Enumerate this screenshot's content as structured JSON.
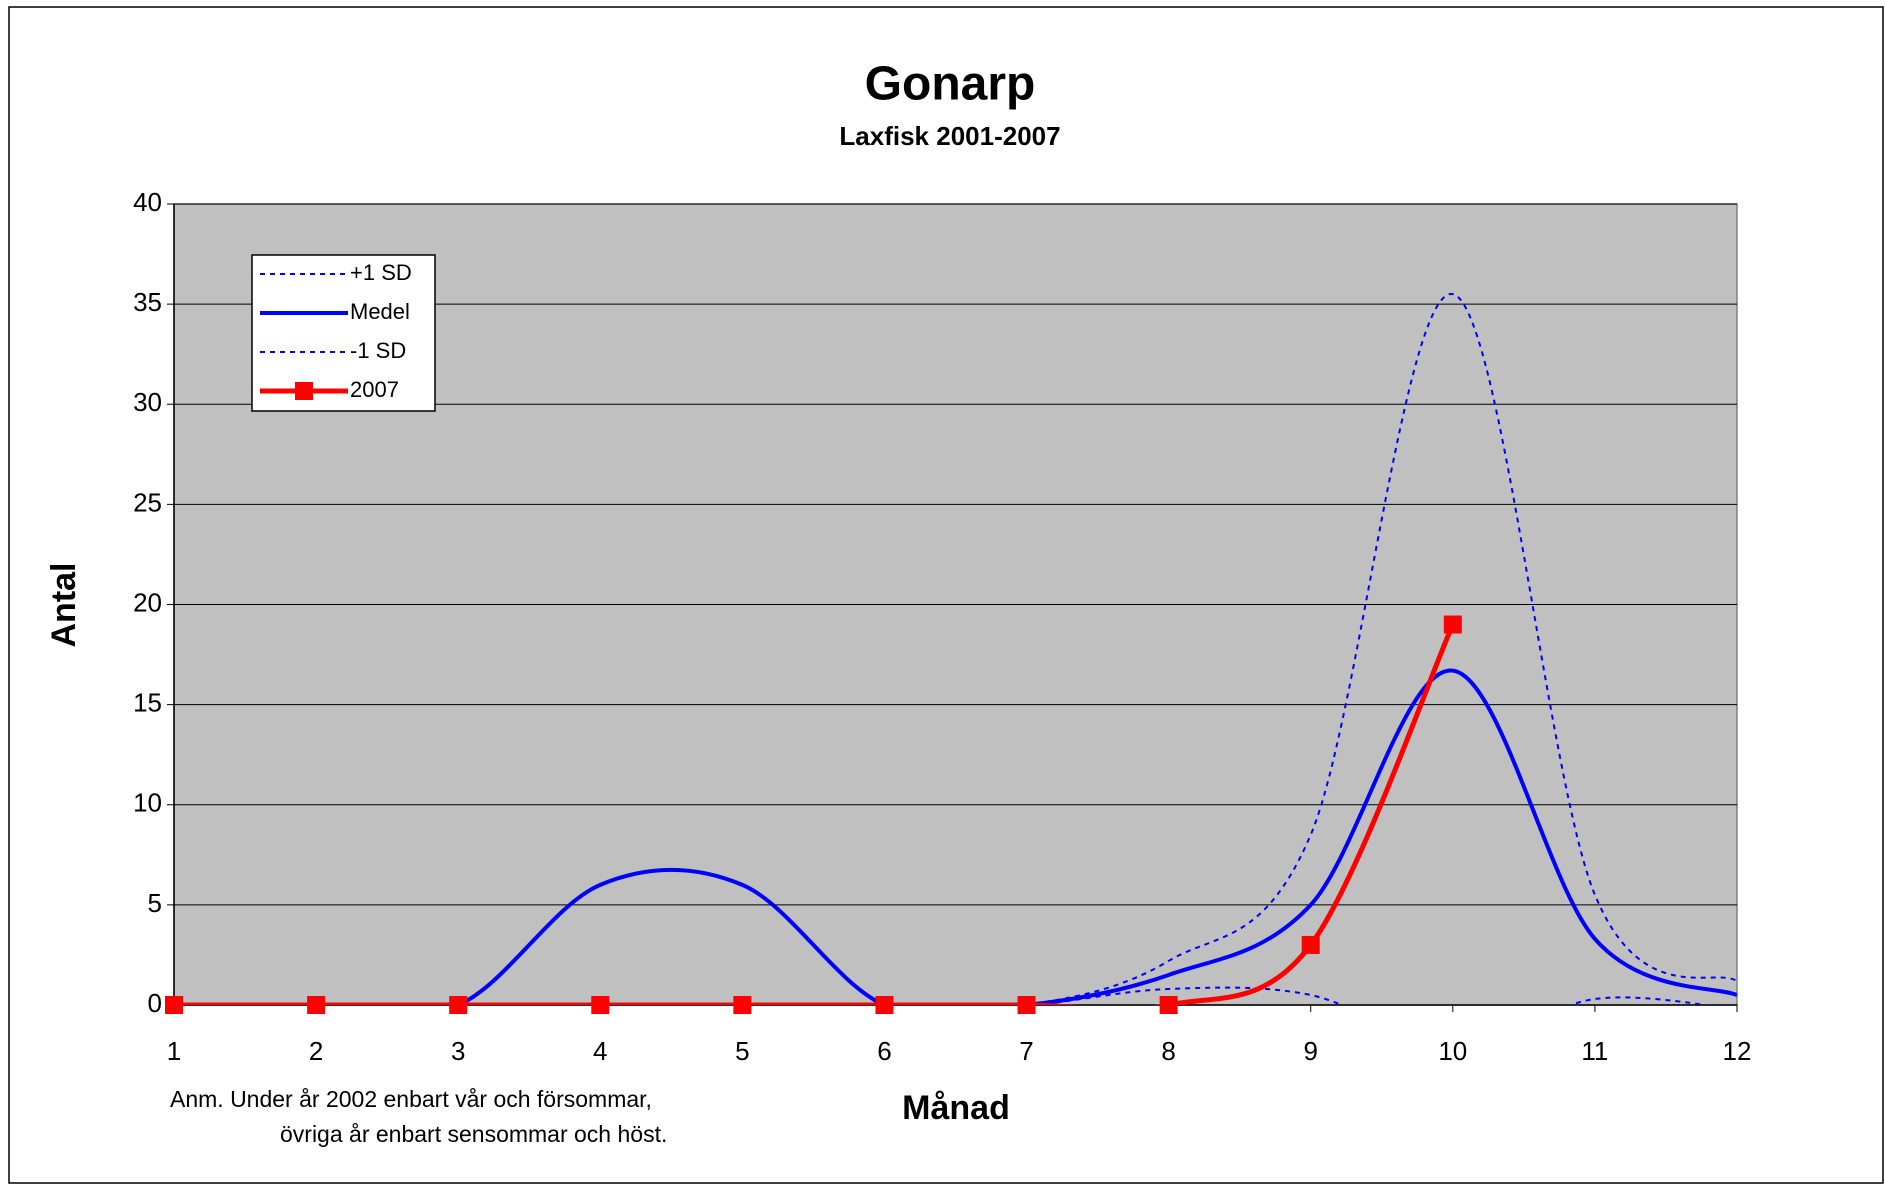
{
  "chart_data": {
    "type": "line",
    "title": "Gonarp",
    "subtitle": "Laxfisk 2001-2007",
    "x_label": "Månad",
    "y_label": "Antal",
    "annotation": [
      "Anm.  Under år 2002 enbart vår och försommar,",
      "övriga år enbart sensommar och höst."
    ],
    "x": [
      1,
      2,
      3,
      4,
      5,
      6,
      7,
      8,
      9,
      10,
      11,
      12
    ],
    "xlim": [
      1,
      12
    ],
    "xticks": [
      1,
      2,
      3,
      4,
      5,
      6,
      7,
      8,
      9,
      10,
      11,
      12
    ],
    "ylim": [
      0,
      40
    ],
    "yticks": [
      0,
      5,
      10,
      15,
      20,
      25,
      30,
      35,
      40
    ],
    "grid": true,
    "smooth": true,
    "legend": "upper left",
    "background": "#c0c0c0",
    "series": [
      {
        "name": "+1 SD",
        "color": "#0000ff",
        "dashed": true,
        "values": [
          0,
          0,
          0,
          6,
          6,
          0,
          0,
          2.2,
          8.5,
          35.5,
          5.5,
          1.2
        ]
      },
      {
        "name": "Medel",
        "color": "#0000ff",
        "values": [
          0,
          0,
          0,
          6,
          6,
          0,
          0,
          1.5,
          5,
          16.7,
          3.3,
          0.5
        ]
      },
      {
        "name": "-1 SD",
        "color": "#0000ff",
        "dashed": true,
        "values": [
          0,
          0,
          0,
          6,
          6,
          0,
          0,
          0.8,
          0.5,
          -2.1,
          0.3,
          -0.2
        ]
      },
      {
        "name": "2007",
        "color": "#ff0000",
        "markers": true,
        "values": [
          0,
          0,
          0,
          0,
          0,
          0,
          0,
          0,
          3,
          19,
          null,
          null
        ]
      }
    ]
  }
}
